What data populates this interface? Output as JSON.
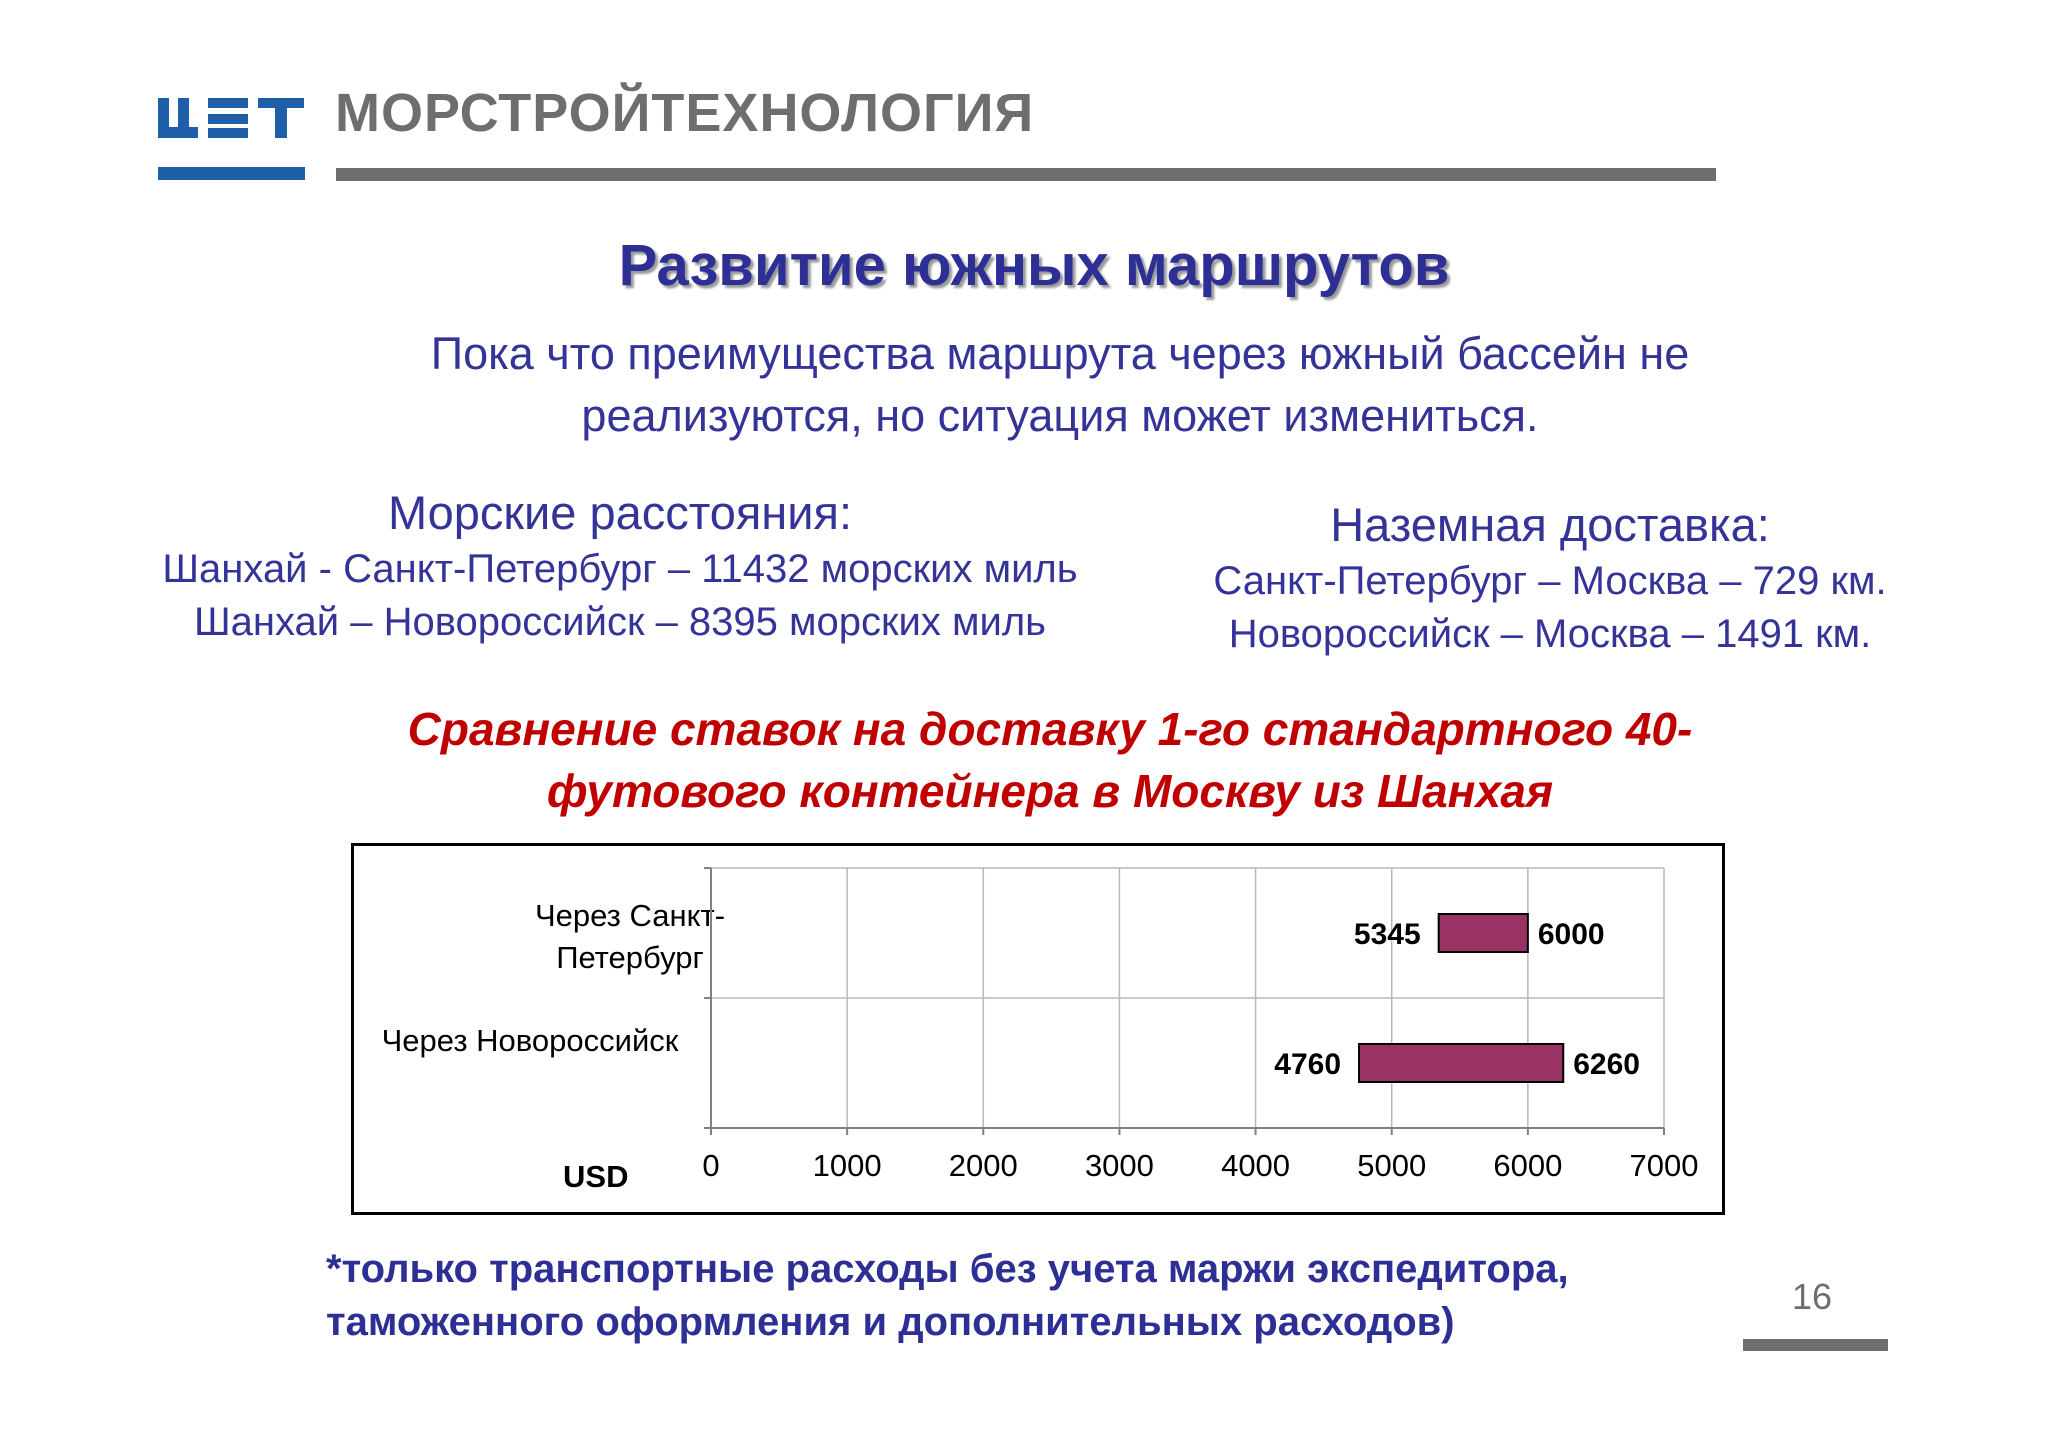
{
  "header": {
    "company": "МОРСТРОЙТЕХНОЛОГИЯ",
    "brand_color": "#1f5ea8",
    "gray_color": "#6e6e6e"
  },
  "title": "Развитие южных маршрутов",
  "subtitle": {
    "line1": "Пока что преимущества маршрута через южный бассейн не",
    "line2": "реализуются, но ситуация может измениться."
  },
  "sea": {
    "heading": "Морские расстояния:",
    "line1": "Шанхай - Санкт-Петербург – 11432 морских миль",
    "line2": "Шанхай – Новороссийск – 8395 морских миль"
  },
  "land": {
    "heading": "Наземная доставка:",
    "line1": "Санкт-Петербург – Москва – 729 км.",
    "line2": "Новороссийск – Москва – 1491 км."
  },
  "chart_title": {
    "line1": "Сравнение ставок на доставку 1-го стандартного 40-",
    "line2": "футового контейнера в Москву из Шанхая"
  },
  "chart_data": {
    "type": "bar",
    "orientation": "horizontal",
    "title": "Сравнение ставок на доставку 1-го стандартного 40-футового контейнера в Москву из Шанхая",
    "xlabel": "USD",
    "xlim": [
      0,
      7000
    ],
    "xticks": [
      "0",
      "1000",
      "2000",
      "3000",
      "4000",
      "5000",
      "6000",
      "7000"
    ],
    "grid": true,
    "bar_color": "#993366",
    "categories": [
      {
        "line1": "Через Санкт-",
        "line2": "Петербург"
      },
      {
        "line1": "Через Новороссийск",
        "line2": ""
      }
    ],
    "ranges": [
      {
        "low": 5345,
        "high": 6000,
        "low_label": "5345",
        "high_label": "6000"
      },
      {
        "low": 4760,
        "high": 6260,
        "low_label": "4760",
        "high_label": "6260"
      }
    ]
  },
  "footnote": {
    "line1": "*только транспортные расходы без учета маржи экспедитора,",
    "line2": "таможенного оформления и дополнительных расходов)"
  },
  "page_number": "16"
}
